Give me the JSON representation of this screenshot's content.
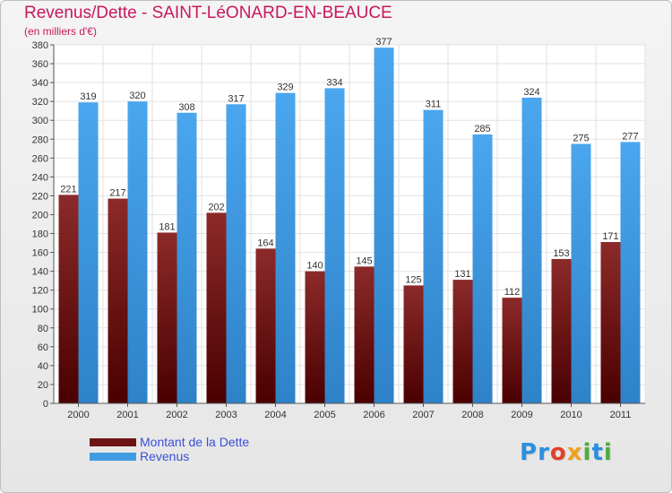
{
  "header": {
    "title": "Revenus/Dette - SAINT-LéONARD-EN-BEAUCE",
    "subtitle": "(en milliers d'€)"
  },
  "colors": {
    "title": "#c8185e",
    "dette": "#8b1f23",
    "revenus": "#3f9be2",
    "legend_text": "#3a4fd8"
  },
  "legend": [
    {
      "label": "Montant de la Dette",
      "color": "#6e1414"
    },
    {
      "label": "Revenus",
      "color": "#3f9be2"
    }
  ],
  "logo": {
    "text": "Proxiti",
    "letters": [
      {
        "char": "P",
        "color": "#2b8fe0"
      },
      {
        "char": "r",
        "color": "#2b8fe0"
      },
      {
        "char": "o",
        "color": "#e0422b"
      },
      {
        "char": "x",
        "color": "#f0a020"
      },
      {
        "char": "i",
        "color": "#4cae3c"
      },
      {
        "char": "t",
        "color": "#2b8fe0"
      },
      {
        "char": "i",
        "color": "#4cae3c"
      }
    ]
  },
  "chart_data": {
    "type": "bar",
    "title": "Revenus/Dette - SAINT-LéONARD-EN-BEAUCE",
    "subtitle": "(en milliers d'€)",
    "categories": [
      "2000",
      "2001",
      "2002",
      "2003",
      "2004",
      "2005",
      "2006",
      "2007",
      "2008",
      "2009",
      "2010",
      "2011"
    ],
    "series": [
      {
        "name": "Montant de la Dette",
        "values": [
          221,
          217,
          181,
          202,
          164,
          140,
          145,
          125,
          131,
          112,
          153,
          171
        ]
      },
      {
        "name": "Revenus",
        "values": [
          319,
          320,
          308,
          317,
          329,
          334,
          377,
          311,
          285,
          324,
          275,
          277
        ]
      }
    ],
    "ylim": [
      0,
      380
    ],
    "yticks": [
      0,
      20,
      40,
      60,
      80,
      100,
      120,
      140,
      160,
      180,
      200,
      220,
      240,
      260,
      280,
      300,
      320,
      340,
      360,
      380
    ],
    "grid": true,
    "legend_position": "bottom-left"
  }
}
